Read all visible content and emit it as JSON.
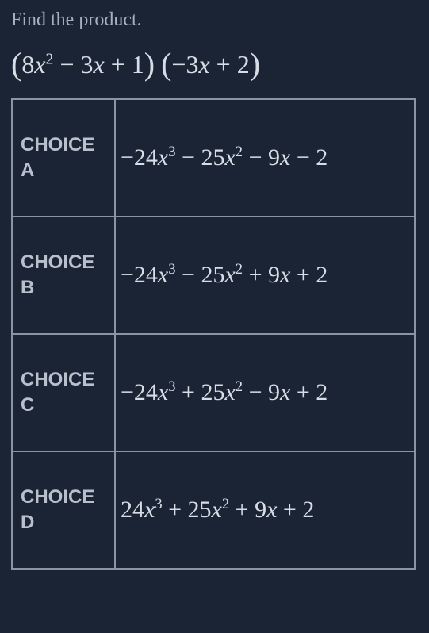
{
  "prompt": "Find the product.",
  "expression_html": "<span class='paren'>(</span>8<span class='var'>x</span><sup>2</sup> &minus; 3<span class='var'>x</span> + 1<span class='paren'>)</span> <span class='paren'>(</span>&minus;3<span class='var'>x</span> + 2<span class='paren'>)</span>",
  "label_word": "CHOICE",
  "choices": [
    {
      "letter": "A",
      "answer_html": "&minus;24<span class='var'>x</span><sup>3</sup> &minus; 25<span class='var'>x</span><sup>2</sup> &minus; 9<span class='var'>x</span> &minus; 2"
    },
    {
      "letter": "B",
      "answer_html": "&minus;24<span class='var'>x</span><sup>3</sup> &minus; 25<span class='var'>x</span><sup>2</sup> + 9<span class='var'>x</span> + 2"
    },
    {
      "letter": "C",
      "answer_html": "&minus;24<span class='var'>x</span><sup>3</sup> + 25<span class='var'>x</span><sup>2</sup> &minus; 9<span class='var'>x</span> + 2"
    },
    {
      "letter": "D",
      "answer_html": "24<span class='var'>x</span><sup>3</sup> + 25<span class='var'>x</span><sup>2</sup> + 9<span class='var'>x</span> + 2"
    }
  ],
  "colors": {
    "background": "#1a2435",
    "text_dim": "#a8b0bd",
    "text": "#d8dde5",
    "border": "#8a94a5"
  }
}
